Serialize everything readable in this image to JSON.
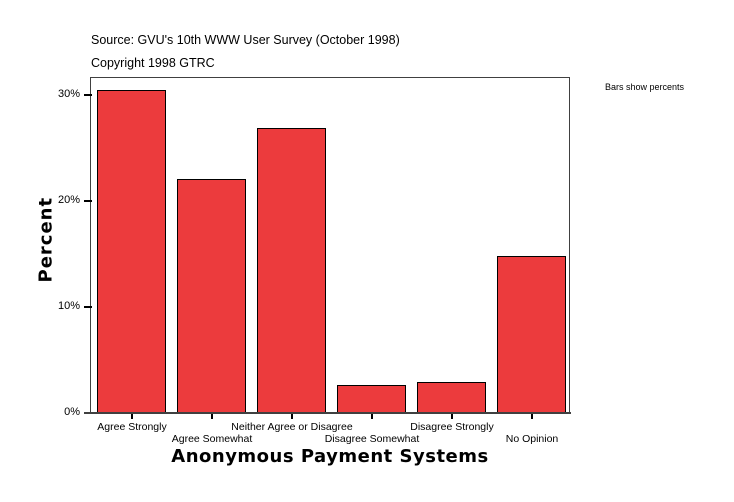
{
  "header": {
    "source": "Source: GVU's 10th WWW User Survey (October 1998)",
    "copyright": "Copyright 1998 GTRC",
    "note": "Bars show percents"
  },
  "axes": {
    "y_title": "Percent",
    "x_title": "Anonymous Payment Systems",
    "y_ticks": [
      "30%",
      "20%",
      "10%",
      "0%"
    ]
  },
  "bars": [
    {
      "label": "Agree Strongly",
      "value": 30.5
    },
    {
      "label": "Agree Somewhat",
      "value": 22.1
    },
    {
      "label": "Neither Agree or Disagree",
      "value": 26.9
    },
    {
      "label": "Disagree Somewhat",
      "value": 2.6
    },
    {
      "label": "Disagree Strongly",
      "value": 2.9
    },
    {
      "label": "No Opinion",
      "value": 14.8
    }
  ],
  "colors": {
    "bar": "#ec3b3d",
    "frame": "#404040"
  },
  "chart_data": {
    "type": "bar",
    "title": "Source: GVU's 10th WWW User Survey (October 1998)",
    "subtitle": "Copyright 1998 GTRC",
    "annotation": "Bars show percents",
    "categories": [
      "Agree Strongly",
      "Agree Somewhat",
      "Neither Agree or Disagree",
      "Disagree Somewhat",
      "Disagree Strongly",
      "No Opinion"
    ],
    "values": [
      30.5,
      22.1,
      26.9,
      2.6,
      2.9,
      14.8
    ],
    "xlabel": "Anonymous Payment Systems",
    "ylabel": "Percent",
    "ylim": [
      0,
      31.7
    ],
    "yticks": [
      0,
      10,
      20,
      30
    ],
    "ytick_labels": [
      "0%",
      "10%",
      "20%",
      "30%"
    ],
    "grid": false,
    "legend": "none"
  }
}
